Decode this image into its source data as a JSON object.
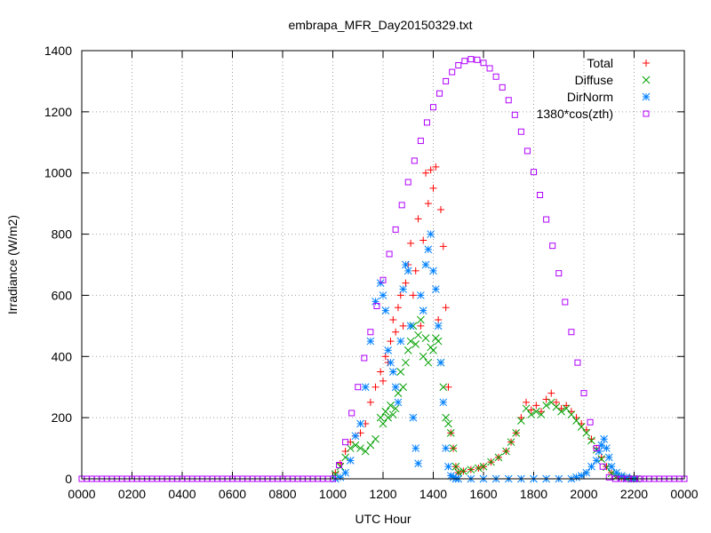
{
  "chart_data": {
    "type": "scatter",
    "title": "embrapa_MFR_Day20150329.txt",
    "xlabel": "UTC Hour",
    "ylabel": "Irradiance (W/m2)",
    "xlim": [
      0,
      24
    ],
    "ylim": [
      0,
      1400
    ],
    "grid": true,
    "legend_position": "top-right",
    "x_tick_labels": [
      "0000",
      "0200",
      "0400",
      "0600",
      "0800",
      "1000",
      "1200",
      "1400",
      "1600",
      "1800",
      "2000",
      "2200",
      "0000"
    ],
    "y_tick_labels": [
      "0",
      "200",
      "400",
      "600",
      "800",
      "1000",
      "1200",
      "1400"
    ],
    "series": [
      {
        "name": "Total",
        "color": "#ff0000",
        "marker": "plus",
        "x": [
          10.1,
          10.3,
          10.5,
          10.7,
          10.9,
          11.1,
          11.3,
          11.5,
          11.7,
          11.9,
          12.0,
          12.1,
          12.2,
          12.3,
          12.4,
          12.5,
          12.6,
          12.7,
          12.8,
          12.9,
          13.0,
          13.1,
          13.2,
          13.3,
          13.4,
          13.5,
          13.6,
          13.7,
          13.8,
          13.9,
          14.0,
          14.1,
          14.2,
          14.3,
          14.4,
          14.5,
          14.6,
          14.7,
          14.8,
          14.9,
          15.0,
          15.2,
          15.5,
          15.8,
          16.0,
          16.3,
          16.6,
          16.9,
          17.1,
          17.3,
          17.5,
          17.7,
          17.9,
          18.1,
          18.3,
          18.5,
          18.7,
          18.9,
          19.1,
          19.3,
          19.5,
          19.7,
          19.9,
          20.1,
          20.3,
          20.5,
          20.7,
          20.9,
          21.1,
          21.3,
          21.5,
          21.7,
          21.9,
          22.1
        ],
        "y": [
          20,
          50,
          90,
          120,
          140,
          150,
          180,
          250,
          300,
          350,
          320,
          400,
          380,
          450,
          520,
          480,
          560,
          600,
          500,
          640,
          700,
          770,
          600,
          680,
          850,
          500,
          780,
          1000,
          900,
          1010,
          950,
          1020,
          520,
          880,
          760,
          560,
          300,
          150,
          100,
          40,
          20,
          25,
          30,
          35,
          40,
          55,
          70,
          90,
          120,
          150,
          200,
          250,
          225,
          240,
          220,
          260,
          280,
          250,
          230,
          240,
          220,
          200,
          180,
          160,
          130,
          100,
          70,
          40,
          20,
          10,
          5,
          2,
          0,
          0
        ]
      },
      {
        "name": "Diffuse",
        "color": "#00a000",
        "marker": "cross",
        "x": [
          10.1,
          10.3,
          10.5,
          10.7,
          10.9,
          11.1,
          11.3,
          11.5,
          11.7,
          11.9,
          12.0,
          12.1,
          12.2,
          12.3,
          12.4,
          12.5,
          12.6,
          12.7,
          12.8,
          12.9,
          13.0,
          13.1,
          13.2,
          13.3,
          13.4,
          13.5,
          13.6,
          13.7,
          13.8,
          13.9,
          14.0,
          14.1,
          14.2,
          14.3,
          14.4,
          14.5,
          14.6,
          14.7,
          14.8,
          14.9,
          15.0,
          15.2,
          15.5,
          15.8,
          16.0,
          16.3,
          16.6,
          16.9,
          17.1,
          17.3,
          17.5,
          17.7,
          17.9,
          18.1,
          18.3,
          18.5,
          18.7,
          18.9,
          19.1,
          19.3,
          19.5,
          19.7,
          19.9,
          20.1,
          20.3,
          20.5,
          20.7,
          20.9,
          21.1,
          21.3,
          21.5,
          21.7,
          21.9,
          22.1
        ],
        "y": [
          15,
          40,
          70,
          100,
          110,
          100,
          90,
          110,
          130,
          200,
          180,
          220,
          200,
          240,
          210,
          230,
          280,
          350,
          300,
          380,
          420,
          450,
          500,
          440,
          470,
          520,
          400,
          460,
          380,
          430,
          420,
          460,
          450,
          380,
          300,
          200,
          180,
          150,
          100,
          40,
          20,
          25,
          30,
          35,
          40,
          55,
          70,
          90,
          120,
          150,
          190,
          230,
          210,
          220,
          210,
          240,
          250,
          235,
          220,
          230,
          210,
          190,
          170,
          150,
          125,
          95,
          65,
          38,
          18,
          8,
          4,
          1,
          0,
          0
        ]
      },
      {
        "name": "DirNorm",
        "color": "#0080ff",
        "marker": "star",
        "x": [
          10.1,
          10.3,
          10.5,
          10.7,
          10.9,
          11.1,
          11.3,
          11.5,
          11.7,
          11.9,
          12.0,
          12.1,
          12.2,
          12.3,
          12.4,
          12.5,
          12.6,
          12.7,
          12.8,
          12.9,
          13.0,
          13.1,
          13.2,
          13.3,
          13.4,
          13.5,
          13.6,
          13.7,
          13.8,
          13.9,
          14.0,
          14.1,
          14.2,
          14.3,
          14.4,
          14.5,
          14.6,
          14.7,
          14.8,
          14.9,
          15.0,
          15.5,
          16.0,
          16.5,
          17.0,
          17.5,
          18.0,
          18.5,
          19.0,
          19.5,
          19.7,
          19.9,
          20.1,
          20.3,
          20.5,
          20.6,
          20.7,
          20.8,
          20.9,
          21.0,
          21.1,
          21.3,
          21.5,
          21.7,
          22.0
        ],
        "y": [
          0,
          5,
          20,
          60,
          140,
          180,
          300,
          450,
          580,
          640,
          600,
          550,
          420,
          380,
          350,
          300,
          250,
          450,
          620,
          700,
          680,
          500,
          200,
          100,
          50,
          600,
          550,
          700,
          750,
          800,
          680,
          620,
          500,
          380,
          250,
          100,
          40,
          10,
          5,
          0,
          0,
          0,
          0,
          0,
          0,
          0,
          0,
          0,
          0,
          0,
          5,
          10,
          20,
          40,
          60,
          90,
          110,
          130,
          100,
          70,
          40,
          20,
          10,
          5,
          0
        ]
      },
      {
        "name": "1380*cos(zth)",
        "color": "#b000ff",
        "marker": "box",
        "x": [
          10.0,
          10.25,
          10.5,
          10.75,
          11.0,
          11.25,
          11.5,
          11.75,
          12.0,
          12.25,
          12.5,
          12.75,
          13.0,
          13.25,
          13.5,
          13.75,
          14.0,
          14.25,
          14.5,
          14.75,
          15.0,
          15.25,
          15.5,
          15.75,
          16.0,
          16.25,
          16.5,
          16.75,
          17.0,
          17.25,
          17.5,
          17.75,
          18.0,
          18.25,
          18.5,
          18.75,
          19.0,
          19.25,
          19.5,
          19.75,
          20.0,
          20.25,
          20.5,
          20.75,
          21.0,
          21.25,
          21.5,
          21.75,
          22.0,
          22.25
        ],
        "y": [
          0,
          45,
          120,
          215,
          300,
          395,
          480,
          565,
          650,
          735,
          815,
          895,
          970,
          1040,
          1105,
          1165,
          1215,
          1260,
          1300,
          1330,
          1352,
          1366,
          1372,
          1370,
          1360,
          1342,
          1315,
          1280,
          1238,
          1190,
          1135,
          1072,
          1003,
          928,
          848,
          762,
          672,
          578,
          480,
          380,
          280,
          185,
          100,
          40,
          5,
          0,
          0,
          0,
          0,
          0
        ]
      }
    ]
  }
}
